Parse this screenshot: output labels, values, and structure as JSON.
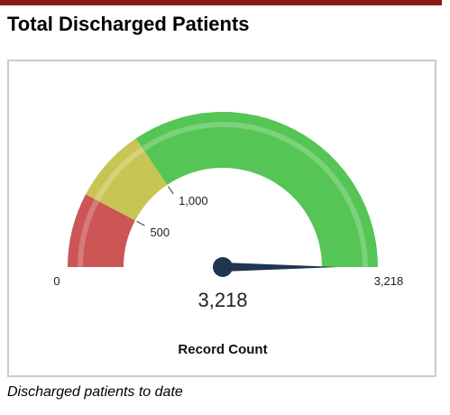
{
  "widget": {
    "title": "Total Discharged Patients",
    "caption": "Discharged patients to date"
  },
  "gauge": {
    "value": 3218,
    "value_display": "3,218",
    "min": 0,
    "max": 3218,
    "metric_label": "Record Count",
    "ranges": [
      {
        "from": 0,
        "to": 500,
        "color": "#cc5555"
      },
      {
        "from": 500,
        "to": 1000,
        "color": "#c8c555"
      },
      {
        "from": 1000,
        "to": 3218,
        "color": "#55c555"
      }
    ],
    "tick_labels": [
      {
        "value": 0,
        "label": "0"
      },
      {
        "value": 500,
        "label": "500"
      },
      {
        "value": 1000,
        "label": "1,000"
      },
      {
        "value": 3218,
        "label": "3,218"
      }
    ],
    "needle_color": "#1f3550"
  }
}
